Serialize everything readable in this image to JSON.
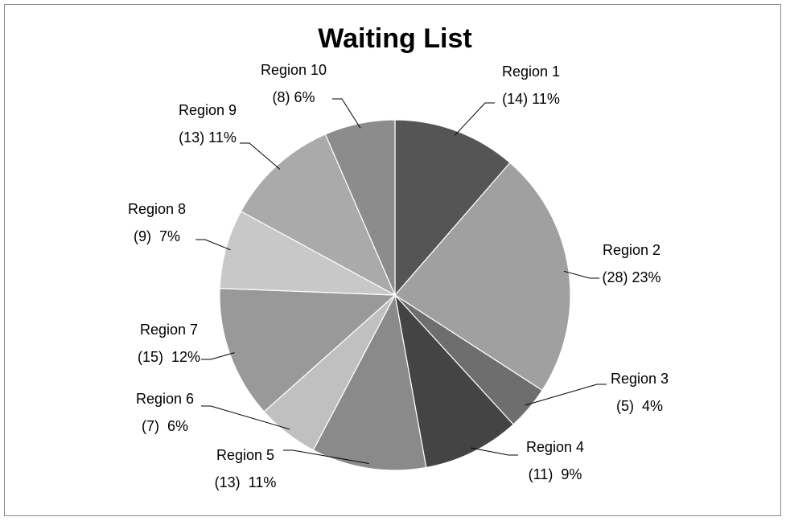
{
  "chart_data": {
    "type": "pie",
    "title": "Waiting List",
    "categories": [
      "Region 1",
      "Region 2",
      "Region 3",
      "Region 4",
      "Region 5",
      "Region 6",
      "Region 7",
      "Region 8",
      "Region 9",
      "Region 10"
    ],
    "values": [
      14,
      28,
      5,
      11,
      13,
      7,
      15,
      9,
      13,
      8
    ],
    "value_labels": [
      "(14) 11%",
      "(28) 23%",
      "(5)  4%",
      "(11)  9%",
      "(13)  11%",
      "(7)  6%",
      "(15)  12%",
      "(9)  7%",
      "(13) 11%",
      "(8) 6%"
    ],
    "colors": [
      "#555555",
      "#a0a0a0",
      "#6e6e6e",
      "#444444",
      "#8a8a8a",
      "#c0c0c0",
      "#999999",
      "#c8c8c8",
      "#aaaaaa",
      "#8c8c8c"
    ]
  }
}
